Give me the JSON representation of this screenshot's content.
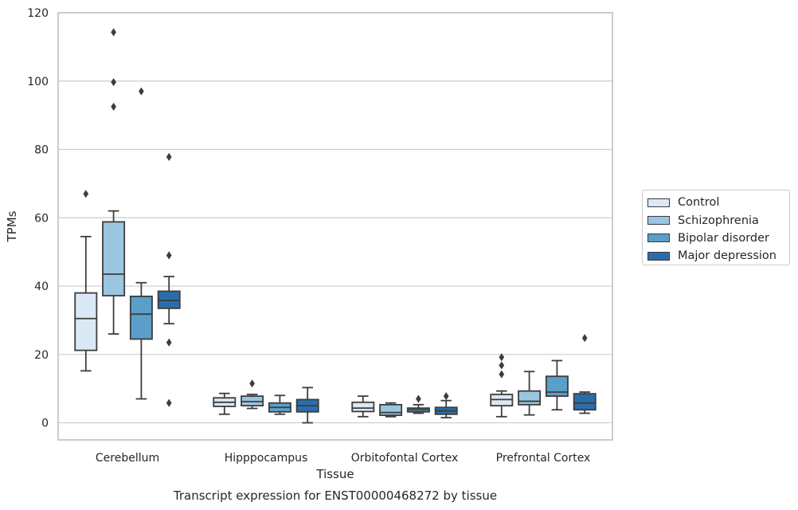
{
  "chart_data": {
    "type": "box",
    "title": "Transcript expression for ENST00000468272 by tissue",
    "xlabel": "Tissue",
    "ylabel": "TPMs",
    "ylim": [
      -5,
      120
    ],
    "yticks": [
      0,
      20,
      40,
      60,
      80,
      100,
      120
    ],
    "grid": "horizontal",
    "legend_position": "right",
    "categories": [
      "Cerebellum",
      "Hipppocampus",
      "Orbitofontal Cortex",
      "Prefrontal Cortex"
    ],
    "series": [
      {
        "name": "Control",
        "color": "#dbe8f5",
        "boxes": [
          {
            "whislo": 15.2,
            "q1": 21.2,
            "med": 30.5,
            "q3": 38.0,
            "whishi": 54.5,
            "fliers": [
              67.0
            ]
          },
          {
            "whislo": 2.5,
            "q1": 4.8,
            "med": 6.0,
            "q3": 7.3,
            "whishi": 8.6,
            "fliers": []
          },
          {
            "whislo": 1.8,
            "q1": 3.3,
            "med": 4.3,
            "q3": 6.0,
            "whishi": 7.8,
            "fliers": []
          },
          {
            "whislo": 1.8,
            "q1": 5.0,
            "med": 6.8,
            "q3": 8.3,
            "whishi": 9.3,
            "fliers": [
              14.2,
              16.8,
              19.2
            ]
          }
        ]
      },
      {
        "name": "Schizophrenia",
        "color": "#9ac6df",
        "boxes": [
          {
            "whislo": 26.0,
            "q1": 37.2,
            "med": 43.5,
            "q3": 58.8,
            "whishi": 62.0,
            "fliers": [
              92.5,
              99.7,
              114.3
            ]
          },
          {
            "whislo": 4.2,
            "q1": 5.0,
            "med": 6.2,
            "q3": 7.8,
            "whishi": 8.3,
            "fliers": [
              11.5
            ]
          },
          {
            "whislo": 1.8,
            "q1": 2.2,
            "med": 3.0,
            "q3": 5.3,
            "whishi": 5.8,
            "fliers": []
          },
          {
            "whislo": 2.3,
            "q1": 5.3,
            "med": 6.3,
            "q3": 9.3,
            "whishi": 15.0,
            "fliers": []
          }
        ]
      },
      {
        "name": "Bipolar disorder",
        "color": "#5b9ec9",
        "boxes": [
          {
            "whislo": 7.0,
            "q1": 24.5,
            "med": 31.8,
            "q3": 37.0,
            "whishi": 41.0,
            "fliers": [
              97.0
            ]
          },
          {
            "whislo": 2.5,
            "q1": 3.2,
            "med": 4.5,
            "q3": 5.8,
            "whishi": 8.0,
            "fliers": []
          },
          {
            "whislo": 2.8,
            "q1": 3.2,
            "med": 3.8,
            "q3": 4.3,
            "whishi": 5.3,
            "fliers": [
              7.0
            ]
          },
          {
            "whislo": 3.8,
            "q1": 7.8,
            "med": 9.0,
            "q3": 13.6,
            "whishi": 18.2,
            "fliers": []
          }
        ]
      },
      {
        "name": "Major depression",
        "color": "#2b6dab",
        "boxes": [
          {
            "whislo": 29.0,
            "q1": 33.5,
            "med": 35.8,
            "q3": 38.5,
            "whishi": 42.8,
            "fliers": [
              5.8,
              23.5,
              49.0,
              77.8
            ]
          },
          {
            "whislo": 0.0,
            "q1": 3.2,
            "med": 5.0,
            "q3": 6.8,
            "whishi": 10.3,
            "fliers": []
          },
          {
            "whislo": 1.5,
            "q1": 2.5,
            "med": 3.5,
            "q3": 4.5,
            "whishi": 6.5,
            "fliers": [
              7.8
            ]
          },
          {
            "whislo": 2.8,
            "q1": 3.8,
            "med": 5.8,
            "q3": 8.5,
            "whishi": 9.0,
            "fliers": [
              24.8
            ]
          }
        ]
      }
    ]
  }
}
